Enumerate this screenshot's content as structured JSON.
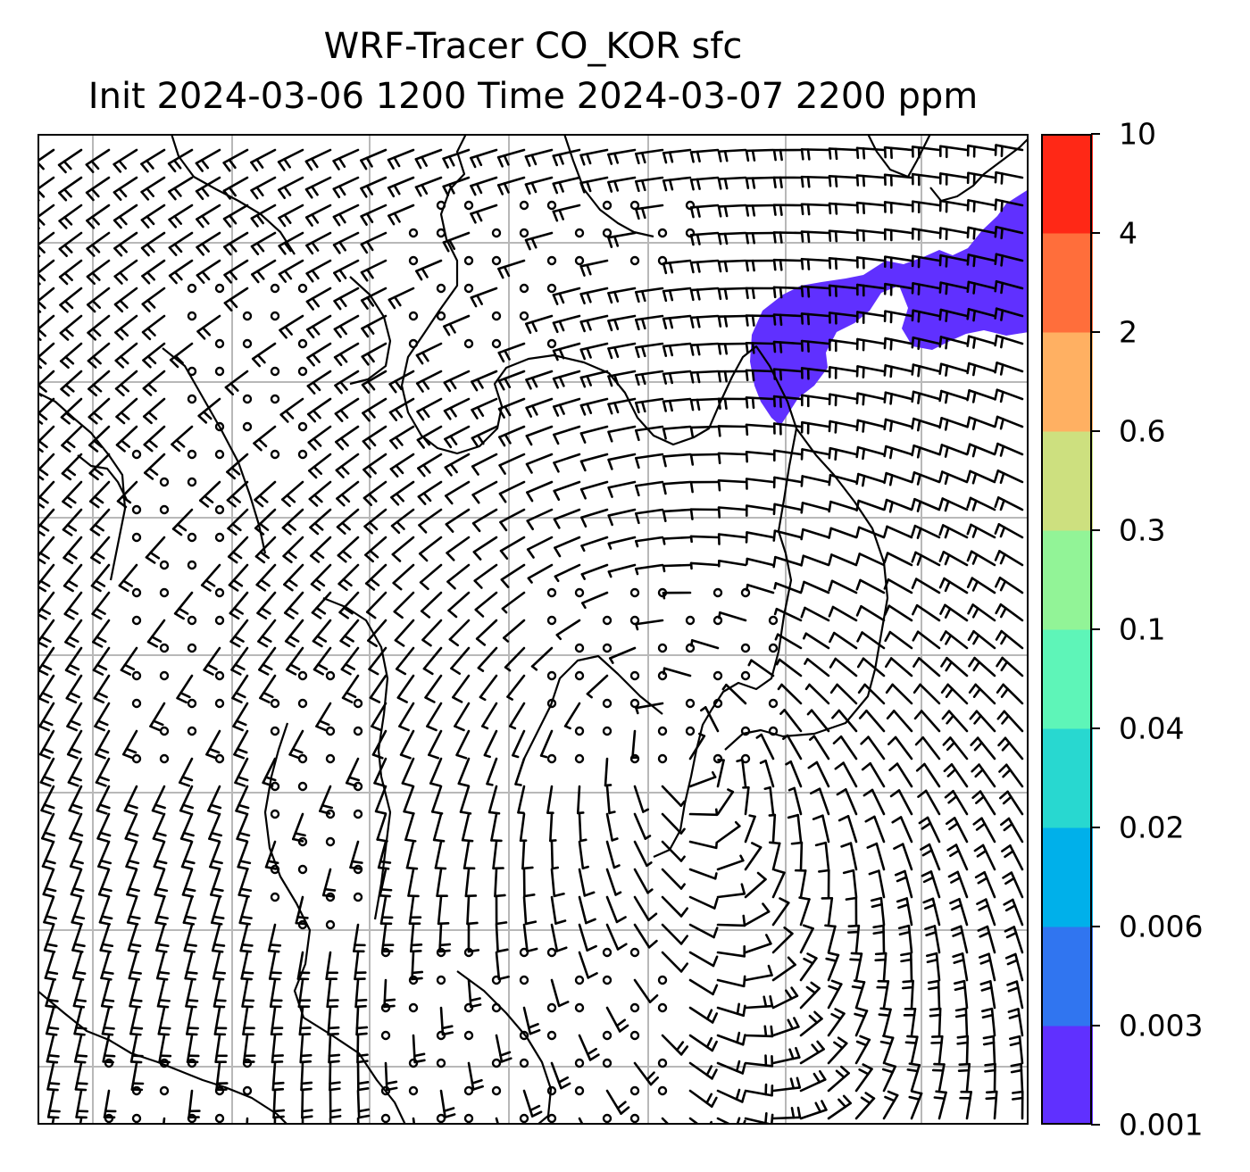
{
  "title": {
    "line1": "WRF-Tracer CO_KOR sfc",
    "line2": "Init 2024-03-06 1200 Time 2024-03-07 2200 ppm"
  },
  "colorbar": {
    "levels": [
      "0.001",
      "0.003",
      "0.006",
      "0.02",
      "0.04",
      "0.1",
      "0.3",
      "0.6",
      "2",
      "4",
      "10"
    ],
    "colors": [
      "#6030ff",
      "#3075f0",
      "#00b0ea",
      "#28d8d0",
      "#5ef5b8",
      "#92f497",
      "#cde07f",
      "#ffb062",
      "#ff6e3b",
      "#ff2816"
    ]
  },
  "map": {
    "plume_color": "#6030ff",
    "gridline_color": "#b8b8b8",
    "coastline_color": "#000000"
  }
}
